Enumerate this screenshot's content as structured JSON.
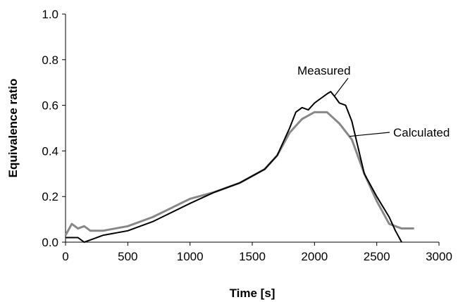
{
  "chart_data": {
    "type": "line",
    "title": "",
    "xlabel": "Time [s]",
    "ylabel": "Equivalence ratio",
    "xlim": [
      0,
      3000
    ],
    "ylim": [
      0,
      1.0
    ],
    "x_ticks": [
      "0",
      "500",
      "1000",
      "1500",
      "2000",
      "2500",
      "3000"
    ],
    "y_ticks": [
      "0.0",
      "0.2",
      "0.4",
      "0.6",
      "0.8",
      "1.0"
    ],
    "grid": false,
    "legend": "none",
    "annotations": [
      {
        "text": "Measured",
        "series": "Measured"
      },
      {
        "text": "Calculated",
        "series": "Calculated"
      }
    ],
    "series": [
      {
        "name": "Measured",
        "color": "#000000",
        "x": [
          0,
          100,
          150,
          200,
          300,
          500,
          700,
          1000,
          1200,
          1400,
          1600,
          1700,
          1800,
          1850,
          1900,
          1950,
          2000,
          2050,
          2100,
          2130,
          2160,
          2200,
          2250,
          2300,
          2400,
          2500,
          2600,
          2650,
          2700
        ],
        "y": [
          0.02,
          0.02,
          0.0,
          0.01,
          0.03,
          0.05,
          0.09,
          0.17,
          0.22,
          0.26,
          0.32,
          0.38,
          0.5,
          0.57,
          0.59,
          0.58,
          0.61,
          0.63,
          0.65,
          0.66,
          0.64,
          0.61,
          0.6,
          0.53,
          0.3,
          0.2,
          0.11,
          0.05,
          0.0
        ]
      },
      {
        "name": "Calculated",
        "color": "#888888",
        "x": [
          0,
          50,
          100,
          150,
          200,
          300,
          500,
          700,
          1000,
          1200,
          1400,
          1600,
          1700,
          1800,
          1900,
          2000,
          2100,
          2200,
          2300,
          2400,
          2500,
          2600,
          2700,
          2800
        ],
        "y": [
          0.03,
          0.08,
          0.06,
          0.07,
          0.05,
          0.05,
          0.07,
          0.11,
          0.19,
          0.22,
          0.26,
          0.32,
          0.38,
          0.48,
          0.54,
          0.57,
          0.57,
          0.52,
          0.45,
          0.3,
          0.18,
          0.08,
          0.06,
          0.06
        ]
      }
    ]
  }
}
